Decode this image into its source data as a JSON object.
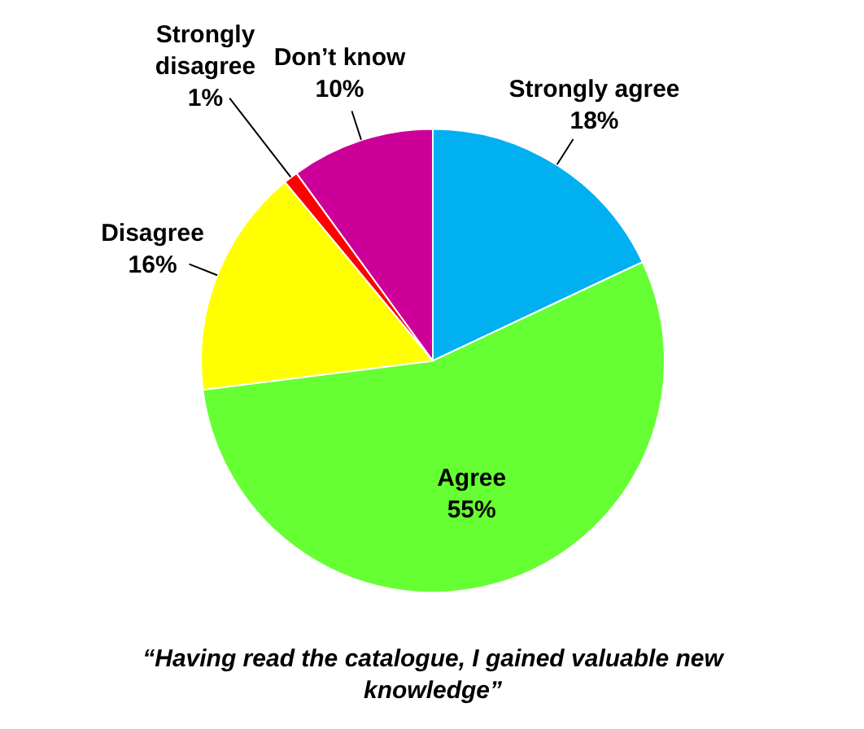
{
  "chart_data": {
    "type": "pie",
    "categories": [
      "Strongly agree",
      "Agree",
      "Disagree",
      "Strongly disagree",
      "Don’t know"
    ],
    "values": [
      18,
      55,
      16,
      1,
      10
    ],
    "colors": [
      "#00b0f0",
      "#66ff33",
      "#ffff00",
      "#ff0000",
      "#cc0099"
    ],
    "value_labels": [
      "18%",
      "55%",
      "16%",
      "1%",
      "10%"
    ],
    "annotations": [
      "“Having read the catalogue, I gained valuable new knowledge”"
    ]
  }
}
